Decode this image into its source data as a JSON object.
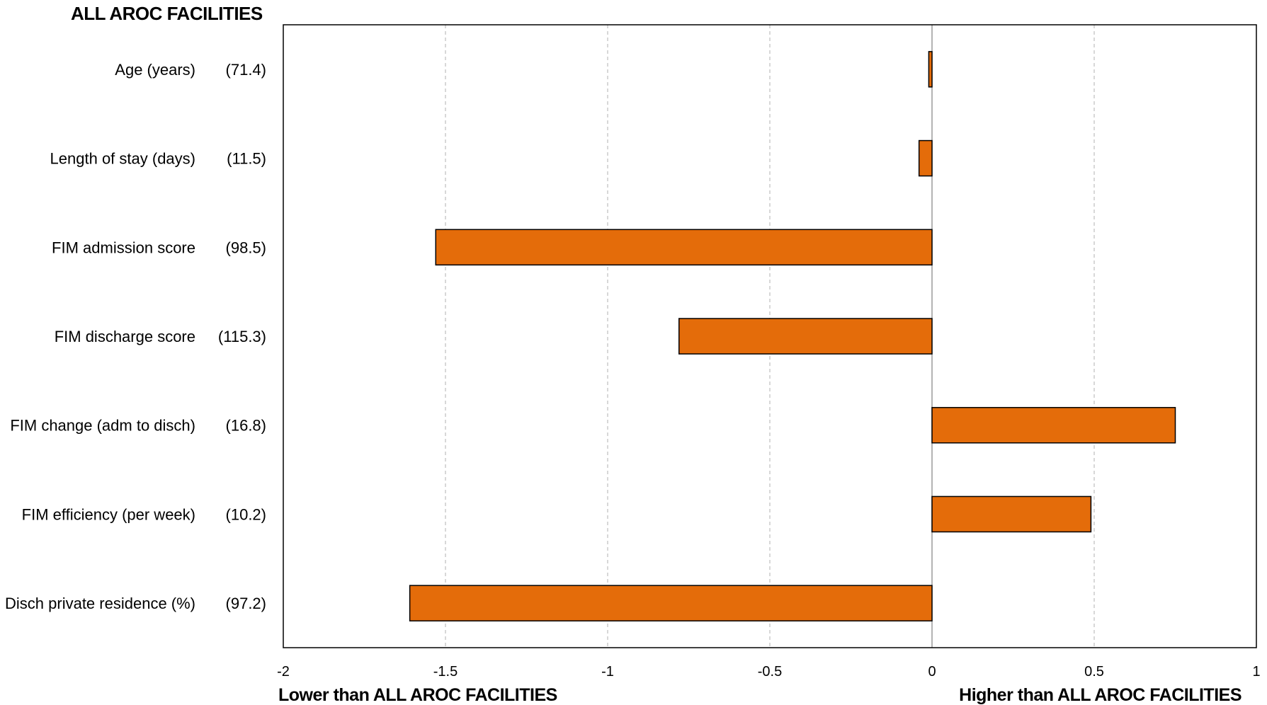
{
  "chart_data": {
    "type": "bar",
    "orientation": "horizontal",
    "title": "ALL AROC FACILITIES",
    "categories": [
      "Age (years)",
      "Length of stay (days)",
      "FIM admission score",
      "FIM discharge score",
      "FIM change (adm to disch)",
      "FIM efficiency (per week)",
      "Disch private residence (%)"
    ],
    "category_values": [
      "(71.4)",
      "(11.5)",
      "(98.5)",
      "(115.3)",
      "(16.8)",
      "(10.2)",
      "(97.2)"
    ],
    "values": [
      -0.01,
      -0.04,
      -1.53,
      -0.78,
      0.75,
      0.49,
      -1.61
    ],
    "xlim": [
      -2,
      1
    ],
    "xticks": [
      -2,
      -1.5,
      -1,
      -0.5,
      0,
      0.5,
      1
    ],
    "xtick_labels": [
      "-2",
      "-1.5",
      "-1",
      "-0.5",
      "0",
      "0.5",
      "1"
    ],
    "xlabel_left": "Lower than ALL AROC FACILITIES",
    "xlabel_right": "Higher than ALL AROC FACILITIES",
    "grid": "vertical dashed",
    "legend": "none",
    "bar_color": "#e46c0a",
    "bar_edge_color": "#000000",
    "zero_line_color": "#9a9a9a",
    "grid_color": "#bdbdbd"
  }
}
